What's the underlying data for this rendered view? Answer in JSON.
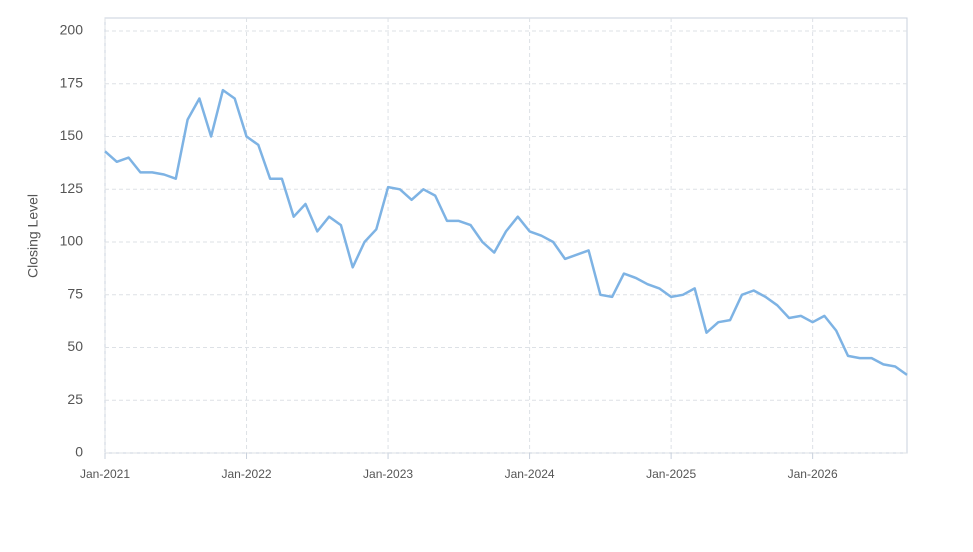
{
  "chart_data": {
    "type": "line",
    "y_label": "Closing Level",
    "x": [
      "2021-01",
      "2021-02",
      "2021-03",
      "2021-04",
      "2021-05",
      "2021-06",
      "2021-07",
      "2021-08",
      "2021-09",
      "2021-10",
      "2021-11",
      "2021-12",
      "2022-01",
      "2022-02",
      "2022-03",
      "2022-04",
      "2022-05",
      "2022-06",
      "2022-07",
      "2022-08",
      "2022-09",
      "2022-10",
      "2022-11",
      "2022-12",
      "2023-01",
      "2023-02",
      "2023-03",
      "2023-04",
      "2023-05",
      "2023-06",
      "2023-07",
      "2023-08",
      "2023-09",
      "2023-10",
      "2023-11",
      "2023-12",
      "2024-01",
      "2024-02",
      "2024-03",
      "2024-04",
      "2024-05",
      "2024-06",
      "2024-07",
      "2024-08",
      "2024-09",
      "2024-10",
      "2024-11",
      "2024-12",
      "2025-01",
      "2025-02",
      "2025-03",
      "2025-04",
      "2025-05",
      "2025-06",
      "2025-07",
      "2025-08",
      "2025-09",
      "2025-10",
      "2025-11",
      "2025-12",
      "2026-01",
      "2026-02",
      "2026-03",
      "2026-04",
      "2026-05",
      "2026-06",
      "2026-07",
      "2026-08",
      "2026-09"
    ],
    "series": [
      {
        "name": "Closing Level",
        "color": "#7eb3e4",
        "values": [
          143,
          138,
          140,
          133,
          133,
          132,
          130,
          158,
          168,
          150,
          172,
          168,
          150,
          146,
          130,
          130,
          112,
          118,
          105,
          112,
          108,
          88,
          100,
          106,
          126,
          125,
          120,
          125,
          122,
          110,
          110,
          108,
          100,
          95,
          105,
          112,
          105,
          103,
          100,
          92,
          94,
          96,
          75,
          74,
          85,
          83,
          80,
          78,
          74,
          75,
          78,
          57,
          62,
          63,
          75,
          77,
          74,
          70,
          64,
          65,
          62,
          65,
          58,
          46,
          45,
          45,
          42,
          41,
          37
        ]
      }
    ],
    "xlim": [
      "2021-01",
      "2026-09"
    ],
    "xticks": [
      {
        "value": "2021-01",
        "label": "Jan-2021"
      },
      {
        "value": "2022-01",
        "label": "Jan-2022"
      },
      {
        "value": "2023-01",
        "label": "Jan-2023"
      },
      {
        "value": "2024-01",
        "label": "Jan-2024"
      },
      {
        "value": "2025-01",
        "label": "Jan-2025"
      },
      {
        "value": "2026-01",
        "label": "Jan-2026"
      }
    ],
    "ylim": [
      0,
      200
    ],
    "yticks": [
      0,
      25,
      50,
      75,
      100,
      125,
      150,
      175,
      200
    ],
    "grid": true
  }
}
